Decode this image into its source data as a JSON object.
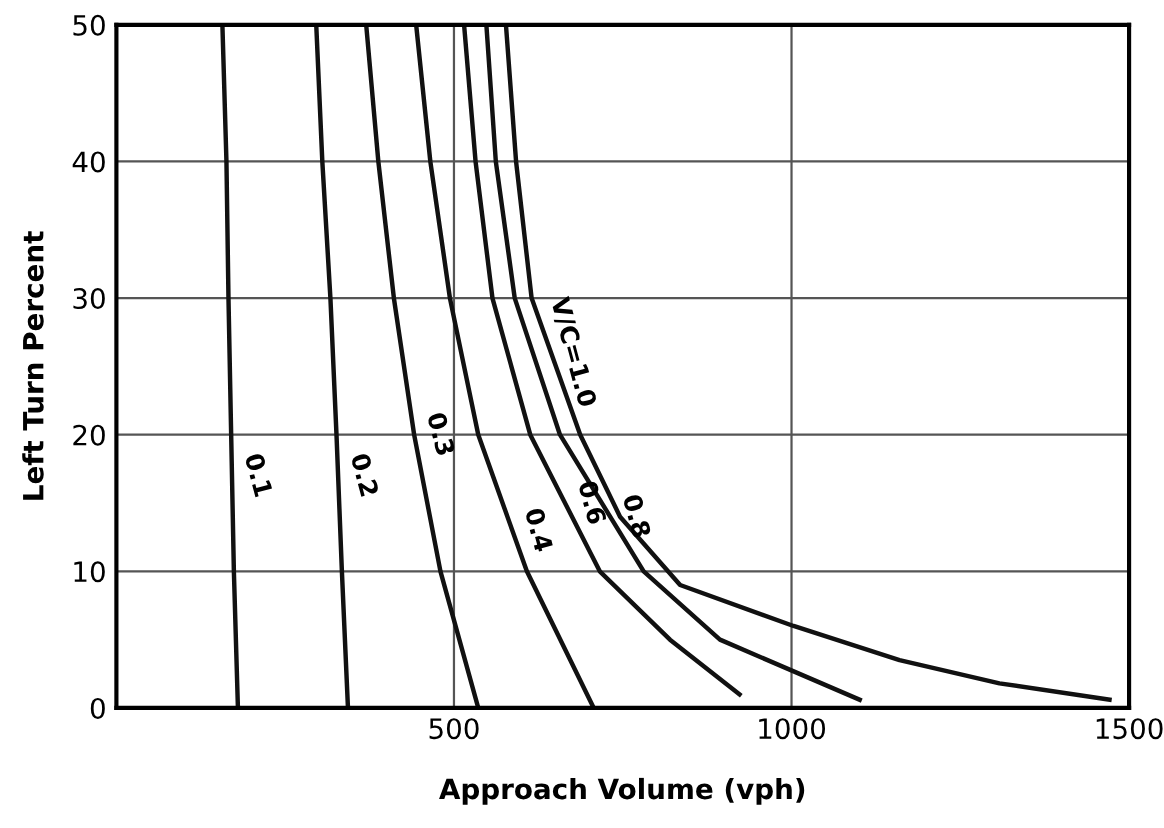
{
  "chart_data": {
    "type": "line",
    "xlabel": "Approach Volume (vph)",
    "ylabel": "Left Turn Percent",
    "xlim": [
      0,
      1500
    ],
    "ylim": [
      0,
      50
    ],
    "xticks": [
      500,
      1000,
      1500
    ],
    "yticks": [
      0,
      10,
      20,
      30,
      40,
      50
    ],
    "grid": true,
    "marker": "none",
    "line_style": "solid",
    "series": [
      {
        "color": "#111111",
        "x": [
          157,
          163,
          166,
          170,
          174,
          180
        ],
        "values": [
          50,
          40,
          30,
          20,
          10,
          0
        ]
      },
      {
        "color": "#111111",
        "x": [
          296,
          305,
          317,
          326,
          334,
          343
        ],
        "values": [
          50,
          40,
          30,
          20,
          10,
          0
        ]
      },
      {
        "color": "#111111",
        "x": [
          370,
          388,
          411,
          441,
          480,
          536
        ],
        "values": [
          50,
          40,
          30,
          20,
          10,
          0
        ]
      },
      {
        "color": "#111111",
        "x": [
          444,
          465,
          494,
          536,
          608,
          707
        ],
        "values": [
          50,
          40,
          30,
          20,
          10,
          0
        ]
      },
      {
        "color": "#111111",
        "x": [
          515,
          532,
          557,
          613,
          716,
          820,
          923
        ],
        "values": [
          50,
          40,
          30,
          20,
          10,
          5,
          1
        ]
      },
      {
        "color": "#111111",
        "x": [
          548,
          562,
          590,
          657,
          781,
          894,
          1101
        ],
        "values": [
          50,
          40,
          30,
          20,
          10,
          5,
          0.6
        ]
      },
      {
        "color": "#111111",
        "x": [
          577,
          592,
          615,
          687,
          746,
          835,
          1003,
          1160,
          1308,
          1471
        ],
        "values": [
          50,
          40,
          30,
          20,
          14,
          9,
          6,
          3.5,
          1.8,
          0.6
        ]
      }
    ],
    "annotations": [
      {
        "text": "0.1",
        "x": 171,
        "y": 17
      },
      {
        "text": "0.2",
        "x": 328,
        "y": 17
      },
      {
        "text": "0.3",
        "x": 441,
        "y": 20
      },
      {
        "text": "0.4",
        "x": 586,
        "y": 13
      },
      {
        "text": "0.6",
        "x": 665,
        "y": 15
      },
      {
        "text": "0.8",
        "x": 731,
        "y": 14
      },
      {
        "text": "V/C=1.0",
        "x": 638,
        "y": 26
      }
    ]
  }
}
